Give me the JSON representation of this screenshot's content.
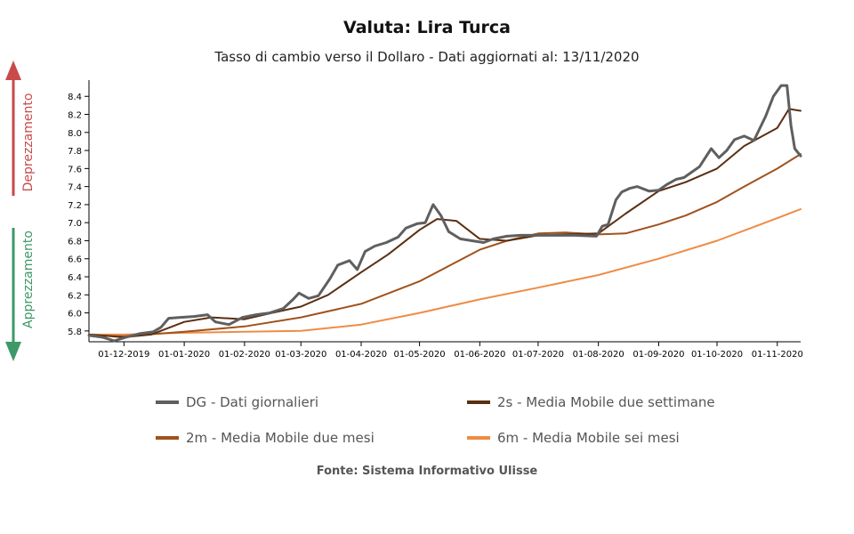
{
  "title": "Valuta: Lira Turca",
  "subtitle": "Tasso di cambio verso il Dollaro - Dati aggiornati al: 13/11/2020",
  "source": "Fonte: Sistema Informativo Ulisse",
  "indicators": {
    "up_label": "Deprezzamento",
    "up_color": "#c94a4a",
    "down_label": "Apprezzamento",
    "down_color": "#3d9968"
  },
  "chart_data": {
    "type": "line",
    "ylim": [
      5.68,
      8.58
    ],
    "yticks": [
      5.8,
      6.0,
      6.2,
      6.4,
      6.6,
      6.8,
      7.0,
      7.2,
      7.4,
      7.6,
      7.8,
      8.0,
      8.2,
      8.4
    ],
    "xlim": [
      "2019-11-13",
      "2020-11-13"
    ],
    "xticks": [
      "01-12-2019",
      "01-01-2020",
      "01-02-2020",
      "01-03-2020",
      "01-04-2020",
      "01-05-2020",
      "01-06-2020",
      "01-07-2020",
      "01-08-2020",
      "01-09-2020",
      "01-10-2020",
      "01-11-2020"
    ],
    "grid": false,
    "legend_position": "bottom",
    "series": [
      {
        "name": "DG - Dati giornalieri",
        "color": "#5f5f5f",
        "width": 3,
        "points": [
          [
            "2019-11-13",
            5.75
          ],
          [
            "2019-11-20",
            5.73
          ],
          [
            "2019-11-26",
            5.69
          ],
          [
            "2019-12-02",
            5.73
          ],
          [
            "2019-12-09",
            5.77
          ],
          [
            "2019-12-16",
            5.79
          ],
          [
            "2019-12-20",
            5.84
          ],
          [
            "2019-12-24",
            5.94
          ],
          [
            "2019-12-30",
            5.95
          ],
          [
            "2020-01-06",
            5.96
          ],
          [
            "2020-01-13",
            5.98
          ],
          [
            "2020-01-17",
            5.9
          ],
          [
            "2020-01-24",
            5.87
          ],
          [
            "2020-01-31",
            5.95
          ],
          [
            "2020-02-07",
            5.98
          ],
          [
            "2020-02-14",
            6.0
          ],
          [
            "2020-02-21",
            6.05
          ],
          [
            "2020-02-26",
            6.15
          ],
          [
            "2020-02-29",
            6.22
          ],
          [
            "2020-03-05",
            6.16
          ],
          [
            "2020-03-10",
            6.19
          ],
          [
            "2020-03-16",
            6.38
          ],
          [
            "2020-03-20",
            6.53
          ],
          [
            "2020-03-26",
            6.58
          ],
          [
            "2020-03-30",
            6.48
          ],
          [
            "2020-04-03",
            6.68
          ],
          [
            "2020-04-08",
            6.74
          ],
          [
            "2020-04-14",
            6.78
          ],
          [
            "2020-04-20",
            6.84
          ],
          [
            "2020-04-24",
            6.94
          ],
          [
            "2020-04-30",
            6.99
          ],
          [
            "2020-05-04",
            7.0
          ],
          [
            "2020-05-08",
            7.2
          ],
          [
            "2020-05-12",
            7.08
          ],
          [
            "2020-05-16",
            6.9
          ],
          [
            "2020-05-22",
            6.82
          ],
          [
            "2020-05-28",
            6.8
          ],
          [
            "2020-06-03",
            6.78
          ],
          [
            "2020-06-08",
            6.82
          ],
          [
            "2020-06-15",
            6.85
          ],
          [
            "2020-06-22",
            6.86
          ],
          [
            "2020-07-01",
            6.86
          ],
          [
            "2020-07-10",
            6.86
          ],
          [
            "2020-07-20",
            6.86
          ],
          [
            "2020-07-31",
            6.85
          ],
          [
            "2020-08-03",
            6.96
          ],
          [
            "2020-08-06",
            6.98
          ],
          [
            "2020-08-10",
            7.25
          ],
          [
            "2020-08-13",
            7.34
          ],
          [
            "2020-08-17",
            7.38
          ],
          [
            "2020-08-21",
            7.4
          ],
          [
            "2020-08-27",
            7.35
          ],
          [
            "2020-09-01",
            7.36
          ],
          [
            "2020-09-05",
            7.42
          ],
          [
            "2020-09-10",
            7.48
          ],
          [
            "2020-09-14",
            7.5
          ],
          [
            "2020-09-18",
            7.56
          ],
          [
            "2020-09-22",
            7.62
          ],
          [
            "2020-09-28",
            7.82
          ],
          [
            "2020-10-02",
            7.72
          ],
          [
            "2020-10-06",
            7.8
          ],
          [
            "2020-10-10",
            7.92
          ],
          [
            "2020-10-15",
            7.96
          ],
          [
            "2020-10-20",
            7.91
          ],
          [
            "2020-10-26",
            8.18
          ],
          [
            "2020-10-30",
            8.4
          ],
          [
            "2020-11-03",
            8.52
          ],
          [
            "2020-11-06",
            8.52
          ],
          [
            "2020-11-08",
            8.08
          ],
          [
            "2020-11-10",
            7.82
          ],
          [
            "2020-11-13",
            7.74
          ]
        ]
      },
      {
        "name": "2s - Media Mobile due settimane",
        "color": "#5a2f12",
        "width": 2,
        "points": [
          [
            "2019-11-13",
            5.76
          ],
          [
            "2019-12-01",
            5.73
          ],
          [
            "2019-12-15",
            5.76
          ],
          [
            "2020-01-01",
            5.9
          ],
          [
            "2020-01-15",
            5.95
          ],
          [
            "2020-02-01",
            5.93
          ],
          [
            "2020-02-15",
            6.0
          ],
          [
            "2020-03-01",
            6.07
          ],
          [
            "2020-03-15",
            6.2
          ],
          [
            "2020-04-01",
            6.45
          ],
          [
            "2020-04-15",
            6.65
          ],
          [
            "2020-05-01",
            6.92
          ],
          [
            "2020-05-10",
            7.04
          ],
          [
            "2020-05-20",
            7.02
          ],
          [
            "2020-06-01",
            6.82
          ],
          [
            "2020-06-15",
            6.8
          ],
          [
            "2020-07-01",
            6.86
          ],
          [
            "2020-07-15",
            6.87
          ],
          [
            "2020-08-01",
            6.88
          ],
          [
            "2020-08-15",
            7.1
          ],
          [
            "2020-09-01",
            7.35
          ],
          [
            "2020-09-15",
            7.45
          ],
          [
            "2020-10-01",
            7.6
          ],
          [
            "2020-10-15",
            7.85
          ],
          [
            "2020-11-01",
            8.05
          ],
          [
            "2020-11-07",
            8.26
          ],
          [
            "2020-11-13",
            8.24
          ]
        ]
      },
      {
        "name": "2m - Media Mobile due mesi",
        "color": "#a0521d",
        "width": 2,
        "points": [
          [
            "2019-11-13",
            5.75
          ],
          [
            "2019-12-01",
            5.74
          ],
          [
            "2020-01-01",
            5.79
          ],
          [
            "2020-02-01",
            5.85
          ],
          [
            "2020-03-01",
            5.95
          ],
          [
            "2020-04-01",
            6.1
          ],
          [
            "2020-05-01",
            6.35
          ],
          [
            "2020-06-01",
            6.7
          ],
          [
            "2020-06-15",
            6.8
          ],
          [
            "2020-07-01",
            6.88
          ],
          [
            "2020-07-15",
            6.89
          ],
          [
            "2020-08-01",
            6.87
          ],
          [
            "2020-08-15",
            6.88
          ],
          [
            "2020-09-01",
            6.98
          ],
          [
            "2020-09-15",
            7.08
          ],
          [
            "2020-10-01",
            7.23
          ],
          [
            "2020-10-15",
            7.4
          ],
          [
            "2020-11-01",
            7.6
          ],
          [
            "2020-11-13",
            7.76
          ]
        ]
      },
      {
        "name": "6m - Media Mobile sei mesi",
        "color": "#ee8c45",
        "width": 2,
        "points": [
          [
            "2019-11-13",
            5.76
          ],
          [
            "2019-12-01",
            5.76
          ],
          [
            "2020-01-01",
            5.78
          ],
          [
            "2020-02-01",
            5.79
          ],
          [
            "2020-03-01",
            5.8
          ],
          [
            "2020-04-01",
            5.87
          ],
          [
            "2020-05-01",
            6.0
          ],
          [
            "2020-06-01",
            6.15
          ],
          [
            "2020-07-01",
            6.28
          ],
          [
            "2020-08-01",
            6.42
          ],
          [
            "2020-09-01",
            6.6
          ],
          [
            "2020-10-01",
            6.8
          ],
          [
            "2020-11-01",
            7.05
          ],
          [
            "2020-11-13",
            7.15
          ]
        ]
      }
    ]
  }
}
